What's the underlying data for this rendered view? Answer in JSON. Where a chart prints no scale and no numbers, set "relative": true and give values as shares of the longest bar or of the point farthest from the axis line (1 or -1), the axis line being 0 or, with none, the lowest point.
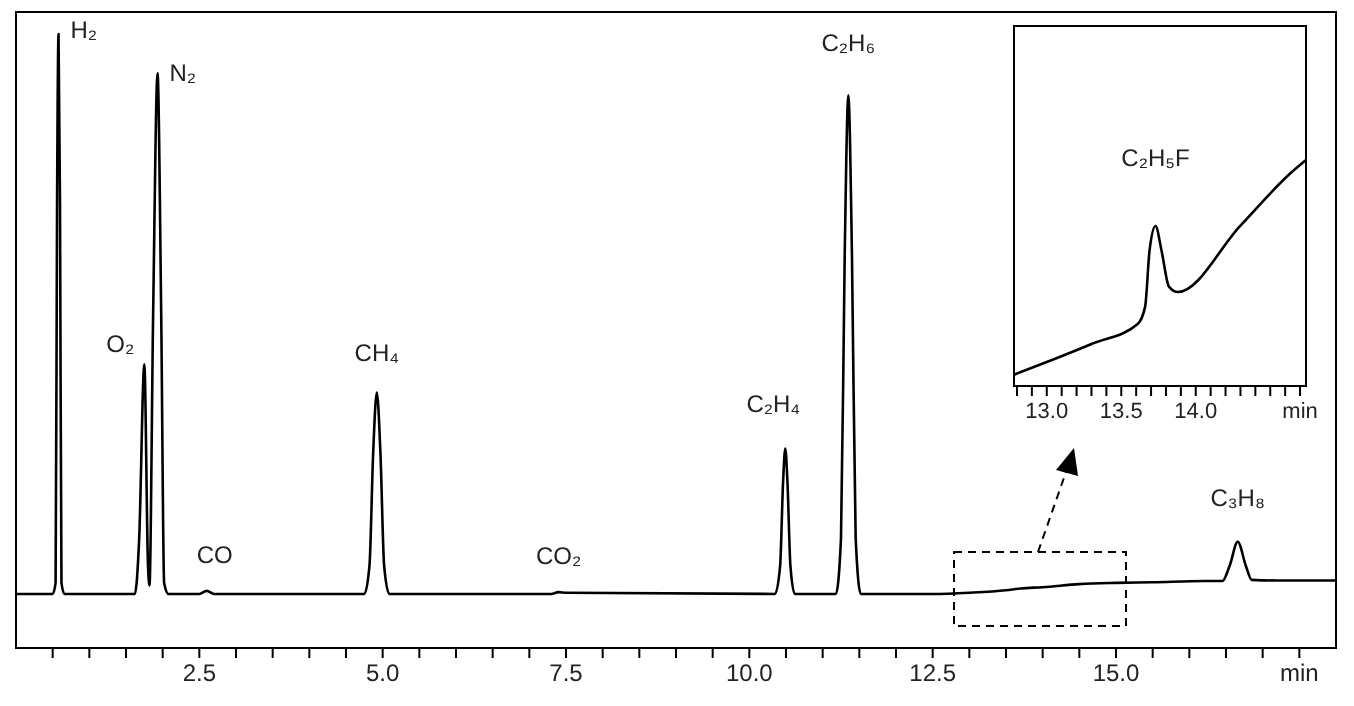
{
  "chart_data": [
    {
      "type": "line",
      "relative": true,
      "xlim": [
        0,
        18
      ],
      "xticks": [
        {
          "value": 0.5,
          "label": null
        },
        {
          "value": 1,
          "label": null
        },
        {
          "value": 1.5,
          "label": null
        },
        {
          "value": 2,
          "label": null
        },
        2.5,
        {
          "value": 3,
          "label": null
        },
        {
          "value": 3.5,
          "label": null
        },
        {
          "value": 4,
          "label": null
        },
        {
          "value": 4.5,
          "label": null
        },
        {
          "value": 5,
          "label": "5.0"
        },
        {
          "value": 5.5,
          "label": null
        },
        {
          "value": 6,
          "label": null
        },
        {
          "value": 6.5,
          "label": null
        },
        {
          "value": 7,
          "label": null
        },
        7.5,
        {
          "value": 8,
          "label": null
        },
        {
          "value": 8.5,
          "label": null
        },
        {
          "value": 9,
          "label": null
        },
        {
          "value": 9.5,
          "label": null
        },
        {
          "value": 10,
          "label": "10.0"
        },
        {
          "value": 10.5,
          "label": null
        },
        {
          "value": 11,
          "label": null
        },
        {
          "value": 11.5,
          "label": null
        },
        {
          "value": 12,
          "label": null
        },
        12.5,
        {
          "value": 13,
          "label": null
        },
        {
          "value": 13.5,
          "label": null
        },
        {
          "value": 14,
          "label": null
        },
        {
          "value": 14.5,
          "label": null
        },
        {
          "value": 15,
          "label": "15.0"
        },
        {
          "value": 15.5,
          "label": null
        },
        {
          "value": 16,
          "label": null
        },
        {
          "value": 16.5,
          "label": null
        },
        {
          "value": 17,
          "label": null
        },
        {
          "value": 17.5,
          "label": "min"
        }
      ],
      "series": [
        {
          "color": "#000000",
          "x": [
            0,
            0.5,
            0.54,
            0.56,
            0.58,
            0.6,
            0.62,
            0.66,
            1.62,
            1.68,
            1.75,
            1.8,
            1.82,
            1.87,
            1.93,
            1.98,
            2.02,
            2.08,
            2.5,
            2.6,
            2.7,
            4.75,
            4.82,
            4.87,
            4.92,
            4.97,
            5.02,
            5.09,
            7.3,
            7.4,
            7.5,
            10.35,
            10.42,
            10.46,
            10.49,
            10.52,
            10.56,
            10.62,
            11.18,
            11.25,
            11.3,
            11.35,
            11.4,
            11.45,
            11.52,
            12.5,
            13,
            13.5,
            13.7,
            14,
            14.5,
            15,
            15.5,
            16.2,
            16.45,
            16.55,
            16.66,
            16.77,
            16.85,
            17.2,
            18
          ],
          "values": [
            0.088,
            0.088,
            0.106,
            0.726,
            1,
            0.726,
            0.106,
            0.088,
            0.088,
            0.179,
            0.462,
            0.134,
            0.102,
            0.544,
            0.936,
            0.544,
            0.106,
            0.088,
            0.088,
            0.093,
            0.088,
            0.088,
            0.134,
            0.316,
            0.416,
            0.316,
            0.134,
            0.088,
            0.088,
            0.091,
            0.09,
            0.088,
            0.134,
            0.27,
            0.325,
            0.27,
            0.134,
            0.088,
            0.088,
            0.179,
            0.635,
            0.9,
            0.635,
            0.179,
            0.088,
            0.088,
            0.09,
            0.094,
            0.097,
            0.099,
            0.104,
            0.106,
            0.107,
            0.109,
            0.109,
            0.134,
            0.173,
            0.134,
            0.111,
            0.11,
            0.11
          ]
        }
      ],
      "annotations": [
        {
          "text": "H₂",
          "x": 0.58,
          "y": 1
        },
        {
          "text": "O₂",
          "x": 1.75,
          "y": 0.462
        },
        {
          "text": "N₂",
          "x": 1.93,
          "y": 0.936
        },
        {
          "text": "CO",
          "x": 2.6,
          "y": 0.093
        },
        {
          "text": "CH₄",
          "x": 4.92,
          "y": 0.416
        },
        {
          "text": "CO₂",
          "x": 7.4,
          "y": 0.091
        },
        {
          "text": "C₂H₄",
          "x": 10.49,
          "y": 0.325
        },
        {
          "text": "C₂H₆",
          "x": 11.35,
          "y": 0.9
        },
        {
          "text": "C₃H₈",
          "x": 16.66,
          "y": 0.173
        }
      ]
    },
    {
      "type": "line",
      "relative": true,
      "xlim": [
        12.78,
        14.74
      ],
      "xticks": [
        {
          "value": 12.8,
          "label": null
        },
        {
          "value": 12.9,
          "label": null
        },
        {
          "value": 13,
          "label": "13.0"
        },
        {
          "value": 13.1,
          "label": null
        },
        {
          "value": 13.2,
          "label": null
        },
        {
          "value": 13.3,
          "label": null
        },
        {
          "value": 13.4,
          "label": null
        },
        13.5,
        {
          "value": 13.6,
          "label": null
        },
        {
          "value": 13.7,
          "label": null
        },
        {
          "value": 13.8,
          "label": null
        },
        {
          "value": 13.9,
          "label": null
        },
        {
          "value": 14,
          "label": "14.0"
        },
        {
          "value": 14.1,
          "label": null
        },
        {
          "value": 14.2,
          "label": null
        },
        {
          "value": 14.3,
          "label": null
        },
        {
          "value": 14.4,
          "label": null
        },
        {
          "value": 14.5,
          "label": null
        },
        {
          "value": 14.6,
          "label": null
        },
        {
          "value": 14.7,
          "label": "min"
        }
      ],
      "series": [
        {
          "color": "#000000",
          "x": [
            12.78,
            13,
            13.3,
            13.61,
            13.66,
            13.69,
            13.73,
            13.77,
            13.82,
            13.88,
            14.3,
            14.65,
            14.74
          ],
          "values": [
            0.05,
            0.106,
            0.186,
            0.274,
            0.35,
            0.6,
            0.708,
            0.6,
            0.44,
            0.416,
            0.71,
            0.95,
            1
          ]
        }
      ],
      "annotations": [
        {
          "text": "C₂H₅F",
          "x": 13.73,
          "y": 0.708
        }
      ]
    }
  ]
}
